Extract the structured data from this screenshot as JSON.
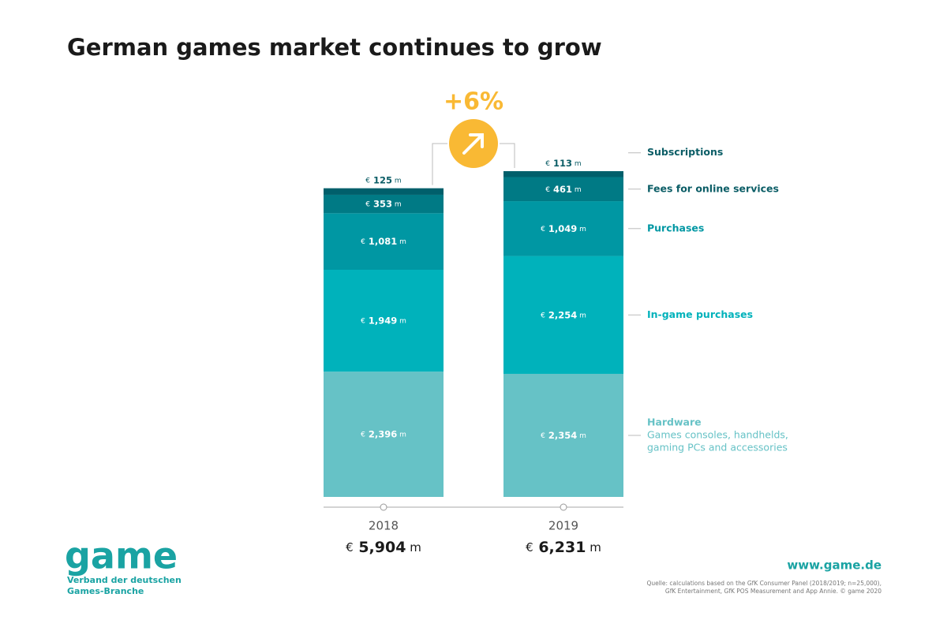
{
  "chart_data": {
    "type": "stacked-bar",
    "title": "German games market continues to grow",
    "categories": [
      "2018",
      "2019"
    ],
    "series": [
      {
        "name": "Hardware",
        "description": [
          "Games consoles, handhelds,",
          "gaming PCs and accessories"
        ],
        "color": "#66c2c6",
        "values": [
          2396,
          2354
        ],
        "value_labels": [
          "€ 2,396 m",
          "€ 2,354 m"
        ]
      },
      {
        "name": "In-game purchases",
        "color": "#00b2bb",
        "values": [
          1949,
          2254
        ],
        "value_labels": [
          "€ 1,949 m",
          "€ 2,254 m"
        ]
      },
      {
        "name": "Purchases",
        "color": "#0097a3",
        "values": [
          1081,
          1049
        ],
        "value_labels": [
          "€ 1,081 m",
          "€ 1,049 m"
        ]
      },
      {
        "name": "Fees for online services",
        "color": "#007a85",
        "values": [
          353,
          461
        ],
        "value_labels": [
          "€ 353 m",
          "€ 461 m"
        ]
      },
      {
        "name": "Subscriptions",
        "color": "#005f6b",
        "values": [
          125,
          113
        ],
        "value_labels": [
          "€ 125 m",
          "€ 113 m"
        ]
      }
    ],
    "totals": {
      "values": [
        5904,
        6231
      ],
      "value_labels": [
        "€ 5,904 m",
        "€ 6,231 m"
      ]
    },
    "growth": {
      "value": 6,
      "label": "+6%",
      "color": "#f9b934"
    },
    "logo": "game",
    "tagline": [
      "Verband der deutschen",
      "Games-Branche"
    ],
    "url": "www.game.de",
    "source": [
      "Quelle: calculations based on the GfK Consumer Panel (2018/2019; n=25,000),",
      "GfK Entertainment, GfK POS Measurement and App Annie. © game 2020"
    ]
  }
}
